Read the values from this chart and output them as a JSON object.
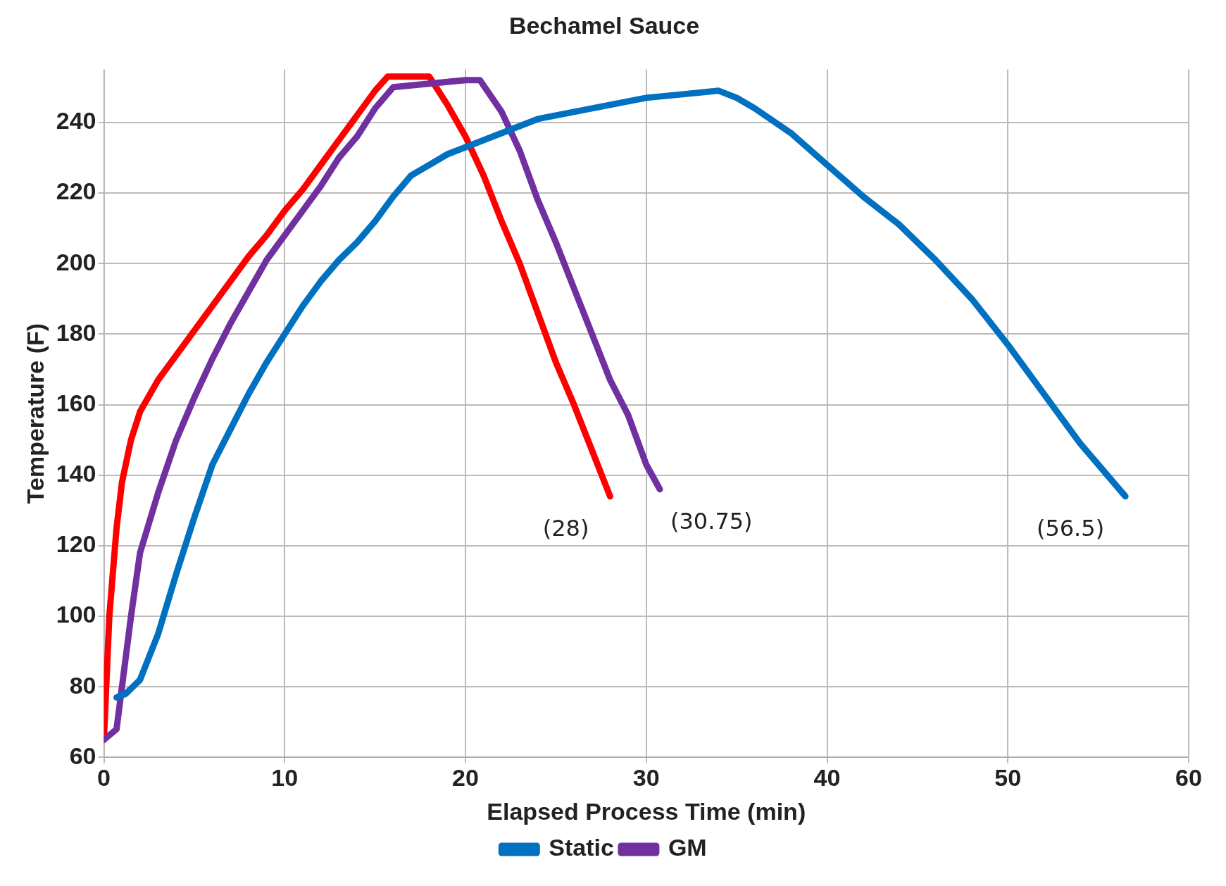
{
  "chart_data": {
    "type": "line",
    "title": "Bechamel Sauce",
    "xlabel": "Elapsed Process Time (min)",
    "ylabel": "Temperature (F)",
    "xlim": [
      0,
      60
    ],
    "xticks": [
      0,
      10,
      20,
      30,
      40,
      50,
      60
    ],
    "ylim": [
      60,
      255
    ],
    "yticks": [
      60,
      80,
      100,
      120,
      140,
      160,
      180,
      200,
      220,
      240
    ],
    "grid": true,
    "legend": "bottom",
    "marker": "none",
    "line_style": "solid",
    "annotations": [
      {
        "text": "(28)",
        "x": 28,
        "y": 134
      },
      {
        "text": "(30.75)",
        "x": 30.75,
        "y": 136
      },
      {
        "text": "(56.5)",
        "x": 56.5,
        "y": 134
      }
    ],
    "series": [
      {
        "name": "Static",
        "color": "#0070c0",
        "x": [
          0.7,
          1.2,
          2,
          3,
          4,
          5,
          6,
          7,
          8,
          9,
          10,
          11,
          12,
          13,
          14,
          15,
          16,
          17,
          18,
          19,
          20,
          22,
          24,
          26,
          28,
          30,
          32,
          34,
          35,
          36,
          38,
          40,
          42,
          44,
          46,
          48,
          50,
          52,
          54,
          56.5
        ],
        "values": [
          77,
          78,
          82,
          95,
          112,
          128,
          143,
          153,
          163,
          172,
          180,
          188,
          195,
          201,
          206,
          212,
          219,
          225,
          228,
          231,
          233,
          237,
          241,
          243,
          245,
          247,
          248,
          249,
          247,
          244,
          237,
          228,
          219,
          211,
          201,
          190,
          177,
          163,
          149,
          134
        ]
      },
      {
        "name": "GM",
        "color": "#7030a0",
        "x": [
          0,
          0.7,
          1,
          1.5,
          2,
          3,
          4,
          5,
          6,
          7,
          8,
          9,
          10,
          11,
          12,
          13,
          14,
          15,
          16,
          18,
          20,
          20.8,
          22,
          23,
          24,
          25,
          26,
          27,
          28,
          29,
          30,
          30.75
        ],
        "values": [
          65,
          68,
          80,
          100,
          118,
          135,
          150,
          162,
          173,
          183,
          192,
          201,
          208,
          215,
          222,
          230,
          236,
          244,
          250,
          251,
          252,
          252,
          243,
          232,
          218,
          206,
          193,
          180,
          167,
          157,
          143,
          136
        ]
      },
      {
        "color": "#ff0000",
        "x": [
          0,
          0.3,
          0.7,
          1,
          1.5,
          2,
          3,
          4,
          5,
          6,
          7,
          8,
          9,
          10,
          11,
          12,
          13,
          14,
          15,
          15.7,
          18,
          19,
          20,
          21,
          22,
          23,
          24,
          25,
          26,
          27,
          28
        ],
        "values": [
          65,
          100,
          125,
          138,
          150,
          158,
          167,
          174,
          181,
          188,
          195,
          202,
          208,
          215,
          221,
          228,
          235,
          242,
          249,
          253,
          253,
          245,
          236,
          225,
          212,
          200,
          186,
          172,
          160,
          147,
          134
        ]
      }
    ]
  }
}
